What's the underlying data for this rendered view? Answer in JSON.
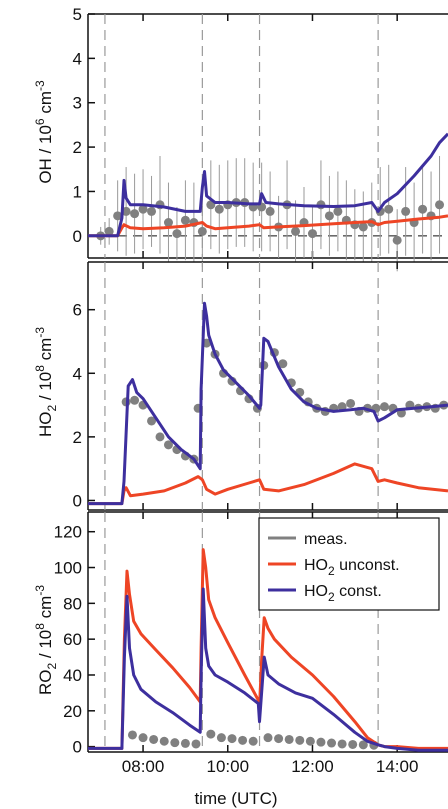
{
  "chart_data": [
    {
      "type": "line",
      "panel": "OH",
      "ylabel": {
        "main": "OH / 10",
        "sup": "6",
        "tail": " cm",
        "sup2": "-3"
      },
      "ylim": [
        -0.5,
        5
      ],
      "yticks": [
        0,
        1,
        2,
        3,
        4,
        5
      ],
      "xlim": [
        6.7,
        15.2
      ],
      "vlines": [
        7.1,
        9.4,
        10.75,
        13.55
      ],
      "series": [
        {
          "name": "meas.",
          "color": "#808080",
          "kind": "points",
          "x": [
            7.0,
            7.2,
            7.4,
            7.6,
            7.8,
            8.0,
            8.2,
            8.4,
            8.6,
            8.8,
            9.0,
            9.2,
            9.4,
            9.6,
            9.8,
            10.0,
            10.2,
            10.4,
            10.6,
            10.8,
            11.0,
            11.2,
            11.4,
            11.6,
            11.8,
            12.0,
            12.2,
            12.4,
            12.6,
            12.8,
            13.0,
            13.2,
            13.4,
            13.6,
            13.8,
            14.0,
            14.2,
            14.4,
            14.6,
            14.8,
            15.0
          ],
          "y": [
            0.0,
            0.1,
            0.45,
            0.55,
            0.5,
            0.6,
            0.55,
            0.7,
            0.3,
            0.05,
            0.35,
            0.3,
            0.1,
            0.7,
            0.6,
            0.7,
            0.75,
            0.75,
            0.65,
            0.65,
            0.55,
            0.2,
            0.7,
            0.1,
            0.3,
            0.05,
            0.7,
            0.45,
            0.55,
            0.35,
            0.25,
            0.2,
            0.3,
            0.55,
            0.6,
            -0.1,
            0.55,
            0.3,
            0.6,
            0.45,
            0.7
          ],
          "err": [
            0.2,
            0.3,
            0.8,
            1.0,
            0.9,
            0.9,
            0.8,
            1.1,
            0.9,
            0.6,
            0.9,
            0.9,
            0.8,
            1.0,
            1.0,
            1.0,
            1.0,
            1.0,
            1.0,
            1.0,
            0.9,
            0.7,
            1.0,
            0.7,
            0.8,
            0.6,
            1.0,
            0.9,
            0.9,
            0.9,
            0.8,
            0.8,
            0.9,
            1.0,
            1.0,
            0.7,
            1.0,
            0.9,
            1.0,
            1.0,
            1.1
          ]
        },
        {
          "name": "HO2 unconst.",
          "color": "#ee4525",
          "kind": "line",
          "x": [
            6.7,
            7.4,
            7.5,
            7.55,
            7.7,
            8.0,
            8.5,
            9.0,
            9.2,
            9.4,
            9.5,
            9.7,
            10.0,
            10.5,
            10.75,
            10.85,
            11.2,
            11.8,
            12.5,
            13.0,
            13.4,
            13.55,
            13.7,
            14.0,
            14.5,
            15.0,
            15.2
          ],
          "y": [
            0.0,
            0.0,
            0.18,
            0.25,
            0.18,
            0.16,
            0.18,
            0.22,
            0.26,
            0.3,
            0.22,
            0.16,
            0.18,
            0.22,
            0.25,
            0.18,
            0.2,
            0.23,
            0.27,
            0.3,
            0.32,
            0.25,
            0.3,
            0.33,
            0.38,
            0.42,
            0.45
          ]
        },
        {
          "name": "HO2 const.",
          "color": "#3d2f9e",
          "kind": "line",
          "x": [
            6.7,
            7.4,
            7.5,
            7.55,
            7.6,
            7.7,
            8.0,
            8.5,
            9.0,
            9.35,
            9.4,
            9.45,
            9.5,
            9.7,
            10.0,
            10.5,
            10.75,
            10.8,
            10.9,
            11.2,
            11.8,
            12.5,
            13.0,
            13.4,
            13.55,
            13.7,
            14.0,
            14.4,
            14.8,
            15.0,
            15.2
          ],
          "y": [
            0.0,
            0.0,
            0.4,
            1.25,
            0.85,
            0.7,
            0.7,
            0.65,
            0.55,
            0.55,
            1.1,
            1.45,
            0.9,
            0.75,
            0.75,
            0.72,
            0.72,
            0.95,
            0.75,
            0.72,
            0.68,
            0.66,
            0.68,
            0.75,
            0.55,
            0.75,
            0.95,
            1.35,
            1.8,
            2.1,
            2.3
          ]
        }
      ]
    },
    {
      "type": "line",
      "panel": "HO2",
      "ylabel": {
        "main": "HO",
        "sub": "2",
        "mid": " / 10",
        "sup": "8",
        "tail": " cm",
        "sup2": "-3"
      },
      "ylim": [
        -0.3,
        7.5
      ],
      "yticks": [
        0,
        2,
        4,
        6
      ],
      "xlim": [
        6.7,
        15.2
      ],
      "vlines": [
        7.1,
        9.4,
        10.75,
        13.55
      ],
      "series": [
        {
          "name": "meas.",
          "color": "#808080",
          "kind": "points",
          "x": [
            7.6,
            7.8,
            8.0,
            8.2,
            8.4,
            8.6,
            8.8,
            9.0,
            9.2,
            9.3,
            9.5,
            9.7,
            9.9,
            10.1,
            10.3,
            10.5,
            10.7,
            10.85,
            11.1,
            11.3,
            11.5,
            11.7,
            11.9,
            12.1,
            12.3,
            12.5,
            12.7,
            12.9,
            13.1,
            13.3,
            13.5,
            13.7,
            13.9,
            14.1,
            14.3,
            14.5,
            14.7,
            14.9,
            15.1
          ],
          "y": [
            3.1,
            3.15,
            3.0,
            2.5,
            2.0,
            1.75,
            1.6,
            1.4,
            1.3,
            2.9,
            4.95,
            4.6,
            4.0,
            3.75,
            3.45,
            3.2,
            2.9,
            4.25,
            4.65,
            4.3,
            3.7,
            3.4,
            3.1,
            2.9,
            2.8,
            2.9,
            2.95,
            3.05,
            2.8,
            2.9,
            2.9,
            2.95,
            2.9,
            2.75,
            3.0,
            2.9,
            2.95,
            2.9,
            3.0
          ]
        },
        {
          "name": "HO2 unconst.",
          "color": "#ee4525",
          "kind": "line",
          "x": [
            6.7,
            7.5,
            7.55,
            7.6,
            7.7,
            8.0,
            8.5,
            9.0,
            9.3,
            9.4,
            9.5,
            9.7,
            10.0,
            10.5,
            10.75,
            10.85,
            11.2,
            11.8,
            12.5,
            13.0,
            13.4,
            13.55,
            13.7,
            14.0,
            14.5,
            15.2
          ],
          "y": [
            -0.1,
            -0.1,
            0.3,
            0.4,
            0.15,
            0.2,
            0.3,
            0.55,
            0.75,
            0.65,
            0.35,
            0.2,
            0.35,
            0.55,
            0.65,
            0.35,
            0.3,
            0.5,
            0.85,
            1.15,
            1.0,
            0.6,
            0.65,
            0.55,
            0.4,
            0.3
          ]
        },
        {
          "name": "HO2 const.",
          "color": "#3d2f9e",
          "kind": "line",
          "x": [
            6.7,
            7.5,
            7.55,
            7.65,
            7.75,
            7.85,
            8.0,
            8.3,
            8.6,
            8.9,
            9.2,
            9.35,
            9.37,
            9.45,
            9.5,
            9.55,
            9.7,
            9.9,
            10.2,
            10.5,
            10.75,
            10.78,
            10.85,
            10.95,
            11.2,
            11.5,
            11.8,
            12.1,
            12.5,
            12.9,
            13.2,
            13.45,
            13.55,
            13.7,
            14.0,
            14.4,
            14.8,
            15.2
          ],
          "y": [
            -0.1,
            -0.1,
            0.6,
            3.6,
            3.8,
            3.4,
            3.2,
            2.6,
            2.0,
            1.6,
            1.3,
            1.0,
            3.5,
            6.2,
            5.8,
            5.2,
            4.6,
            4.1,
            3.7,
            3.3,
            2.9,
            3.0,
            5.1,
            5.0,
            4.2,
            3.5,
            3.1,
            2.9,
            2.8,
            2.85,
            2.9,
            2.8,
            2.5,
            2.6,
            2.85,
            2.9,
            2.95,
            3.0
          ]
        }
      ]
    },
    {
      "type": "line",
      "panel": "RO2",
      "ylabel": {
        "main": "RO",
        "sub": "2",
        "mid": " / 10",
        "sup": "8",
        "tail": " cm",
        "sup2": "-3"
      },
      "ylim": [
        -3,
        131
      ],
      "yticks": [
        0,
        20,
        40,
        60,
        80,
        100,
        120
      ],
      "xlim": [
        6.7,
        15.2
      ],
      "xticks": [
        8,
        10,
        12,
        14
      ],
      "xticklabels": [
        "08:00",
        "10:00",
        "12:00",
        "14:00"
      ],
      "xlabel": "time (UTC)",
      "vlines": [
        7.1,
        9.4,
        10.75,
        13.55
      ],
      "legend": {
        "position": "top-right",
        "entries": [
          "meas.",
          "HO2 unconst.",
          "HO2 const."
        ]
      },
      "series": [
        {
          "name": "meas.",
          "color": "#808080",
          "kind": "points",
          "x": [
            7.75,
            8.0,
            8.25,
            8.5,
            8.75,
            9.0,
            9.25,
            9.6,
            9.85,
            10.1,
            10.35,
            10.6,
            10.95,
            11.2,
            11.45,
            11.7,
            11.95,
            12.2,
            12.45,
            12.7,
            12.95,
            13.2,
            13.45
          ],
          "y": [
            6.5,
            5.0,
            4.0,
            3.0,
            2.2,
            1.8,
            1.5,
            7.0,
            5.0,
            4.5,
            3.5,
            3.0,
            5.0,
            4.5,
            4.0,
            3.5,
            3.0,
            2.5,
            2.0,
            1.5,
            1.2,
            1.0,
            0.8
          ]
        },
        {
          "name": "HO2 unconst.",
          "color": "#ee4525",
          "kind": "line",
          "x": [
            6.7,
            7.5,
            7.56,
            7.62,
            7.68,
            7.78,
            7.95,
            8.3,
            8.7,
            9.1,
            9.35,
            9.37,
            9.42,
            9.48,
            9.55,
            9.7,
            10.0,
            10.4,
            10.72,
            10.75,
            10.8,
            10.86,
            10.95,
            11.1,
            11.5,
            12.0,
            12.5,
            13.0,
            13.3,
            13.55,
            13.7,
            14.0,
            14.5,
            15.2
          ],
          "y": [
            -1,
            -1,
            60,
            98,
            85,
            70,
            63,
            54,
            44,
            33,
            25,
            55,
            110,
            100,
            82,
            72,
            58,
            40,
            26,
            22,
            48,
            72,
            66,
            60,
            50,
            40,
            28,
            14,
            5,
            1,
            0,
            0,
            -1,
            -1
          ]
        },
        {
          "name": "HO2 const.",
          "color": "#3d2f9e",
          "kind": "line",
          "x": [
            6.7,
            7.5,
            7.56,
            7.62,
            7.68,
            7.78,
            7.95,
            8.3,
            8.7,
            9.1,
            9.35,
            9.37,
            9.42,
            9.48,
            9.55,
            9.7,
            10.0,
            10.4,
            10.72,
            10.75,
            10.8,
            10.86,
            10.95,
            11.2,
            11.6,
            12.0,
            12.5,
            13.0,
            13.3,
            13.55,
            13.7,
            14.0,
            14.5,
            15.2
          ],
          "y": [
            -1,
            -1,
            50,
            84,
            55,
            40,
            32,
            25,
            19,
            12,
            8,
            40,
            88,
            55,
            45,
            40,
            36,
            30,
            24,
            14,
            30,
            50,
            40,
            35,
            30,
            27,
            18,
            8,
            3,
            1,
            0,
            -1,
            -2,
            -2
          ]
        }
      ]
    }
  ],
  "legend": {
    "meas": "meas.",
    "unconst_main": "HO",
    "unconst_sub": "2",
    "unconst_tail": " unconst.",
    "const_main": "HO",
    "const_sub": "2",
    "const_tail": " const."
  },
  "xaxis": {
    "label": "time (UTC)"
  }
}
